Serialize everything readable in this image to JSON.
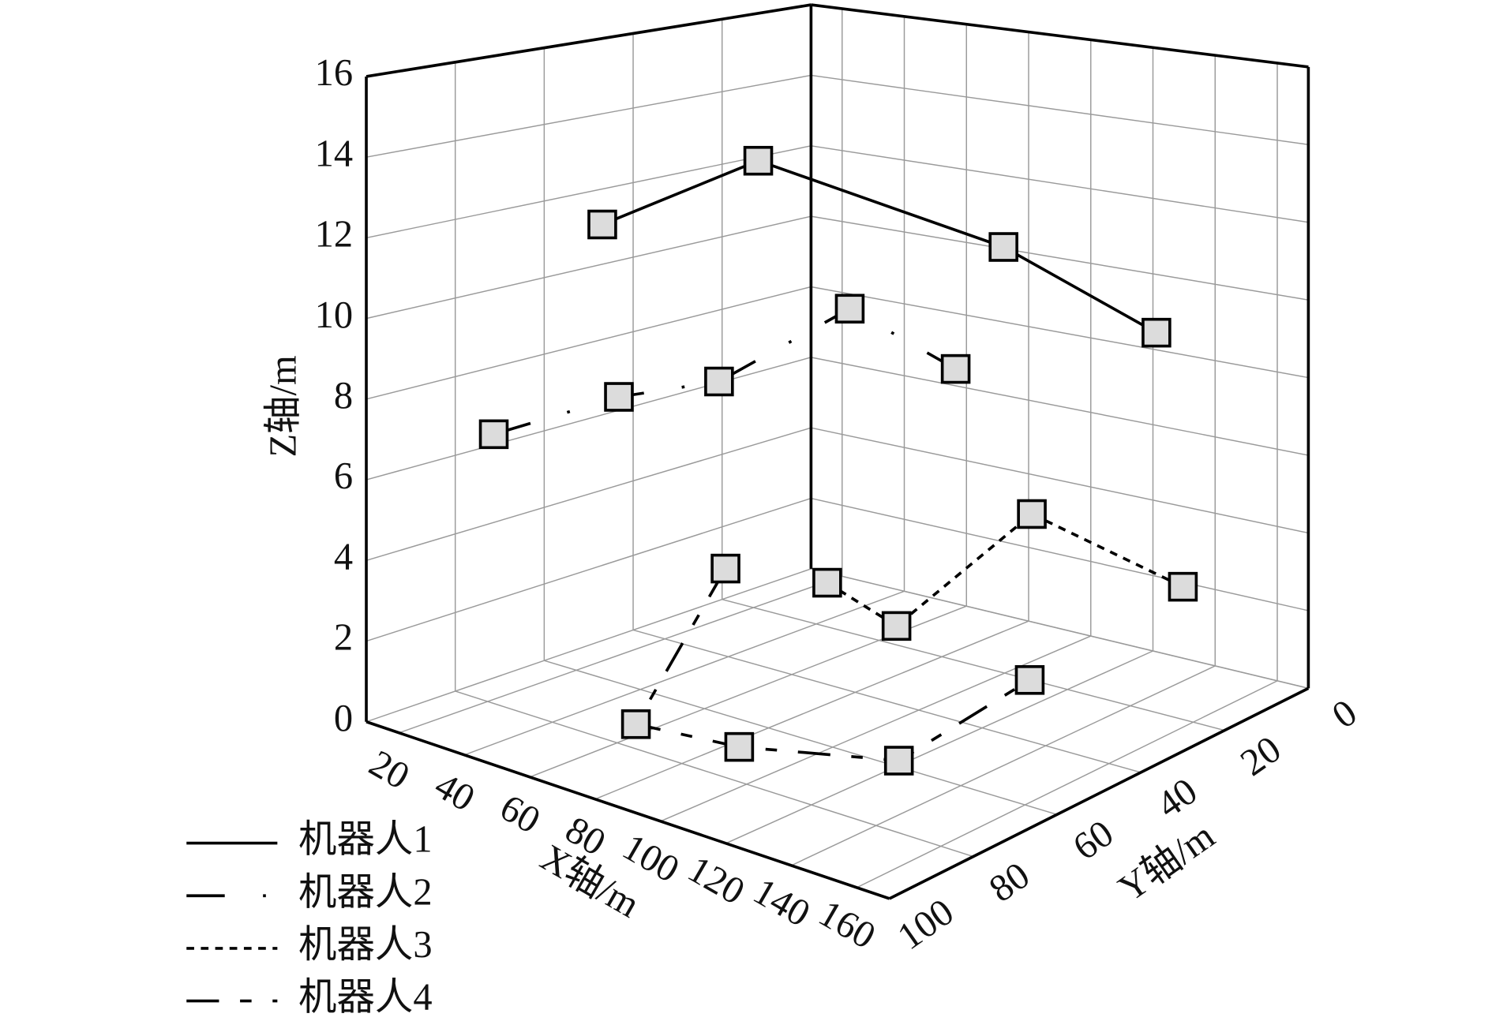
{
  "chart_data": {
    "type": "line3d",
    "xlabel": "X轴/m",
    "ylabel": "Y轴/m",
    "zlabel": "Z轴/m",
    "xlim": [
      10,
      170
    ],
    "ylim": [
      0,
      100
    ],
    "zlim": [
      0,
      16
    ],
    "xticks": [
      20,
      40,
      60,
      80,
      100,
      120,
      140,
      160
    ],
    "yticks": [
      0,
      20,
      40,
      60,
      80,
      100
    ],
    "zticks": [
      0,
      2,
      4,
      6,
      8,
      10,
      12,
      14,
      16
    ],
    "grid": true,
    "legend": "lower left",
    "marker_fill": "#dcdcdc",
    "series": [
      {
        "name": "机器人1",
        "color": "#000000",
        "dash": "solid",
        "x": [
          35,
          70,
          120,
          155
        ],
        "y": [
          65,
          55,
          35,
          25
        ],
        "z": [
          12,
          14,
          12,
          10
        ]
      },
      {
        "name": "机器人2",
        "color": "#000000",
        "dash": "dashdot",
        "x": [
          26,
          47,
          55,
          81,
          113
        ],
        "y": [
          83,
          70,
          53,
          42,
          41
        ],
        "z": [
          7,
          8,
          8,
          10,
          9
        ]
      },
      {
        "name": "机器人3",
        "color": "#000000",
        "dash": "dotted",
        "x": [
          78,
          93,
          141,
          150
        ],
        "y": [
          45,
          40,
          44,
          15
        ],
        "z": [
          3,
          2,
          6,
          3
        ]
      },
      {
        "name": "机器人4",
        "color": "#000000",
        "dash": "longshort",
        "x": [
          72,
          55,
          83,
          118,
          143
        ],
        "y": [
          64,
          72,
          69,
          58,
          46
        ],
        "z": [
          4,
          0,
          0,
          0,
          2
        ]
      }
    ]
  }
}
